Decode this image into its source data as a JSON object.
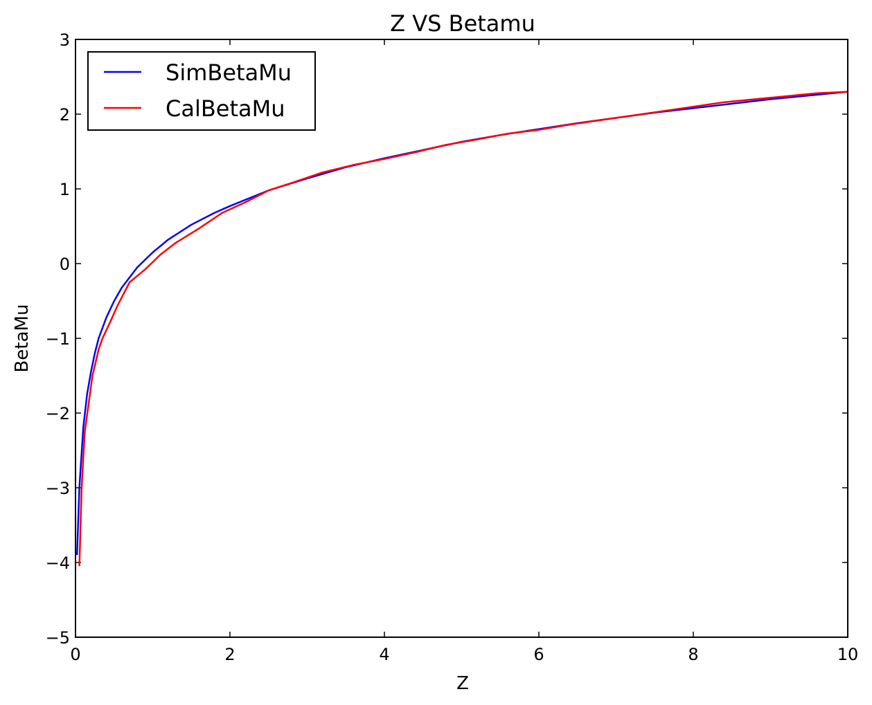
{
  "chart_data": {
    "type": "line",
    "title": "Z VS Betamu",
    "xlabel": "Z",
    "ylabel": "BetaMu",
    "xlim": [
      0,
      10
    ],
    "ylim": [
      -5,
      3
    ],
    "xticks": [
      0,
      2,
      4,
      6,
      8,
      10
    ],
    "yticks": [
      -5,
      -4,
      -3,
      -2,
      -1,
      0,
      1,
      2,
      3
    ],
    "xtick_labels": [
      "0",
      "2",
      "4",
      "6",
      "8",
      "10"
    ],
    "ytick_labels": [
      "−5",
      "−4",
      "−3",
      "−2",
      "−1",
      "0",
      "1",
      "2",
      "3"
    ],
    "grid": false,
    "legend_position": "top-left",
    "series": [
      {
        "name": "SimBetaMu",
        "color": "#0000ff",
        "x": [
          0.02,
          0.05,
          0.1,
          0.15,
          0.2,
          0.25,
          0.3,
          0.4,
          0.5,
          0.6,
          0.8,
          1.0,
          1.2,
          1.5,
          1.8,
          2.0,
          2.5,
          3.0,
          3.5,
          4.0,
          4.5,
          5.0,
          5.5,
          6.0,
          6.5,
          7.0,
          7.5,
          8.0,
          8.5,
          9.0,
          9.5,
          10.0
        ],
        "values": [
          -3.9,
          -3.0,
          -2.2,
          -1.75,
          -1.45,
          -1.2,
          -1.0,
          -0.72,
          -0.5,
          -0.32,
          -0.05,
          0.15,
          0.32,
          0.52,
          0.68,
          0.77,
          0.98,
          1.14,
          1.29,
          1.41,
          1.52,
          1.63,
          1.72,
          1.8,
          1.88,
          1.95,
          2.02,
          2.08,
          2.14,
          2.2,
          2.25,
          2.3
        ]
      },
      {
        "name": "CalBetaMu",
        "color": "#ff0000",
        "x": [
          0.05,
          0.08,
          0.12,
          0.18,
          0.22,
          0.3,
          0.35,
          0.45,
          0.55,
          0.7,
          0.9,
          1.1,
          1.3,
          1.6,
          1.9,
          2.2,
          2.5,
          2.8,
          3.2,
          3.6,
          4.0,
          4.4,
          4.8,
          5.2,
          5.6,
          6.0,
          6.4,
          6.8,
          7.2,
          7.6,
          8.0,
          8.4,
          8.8,
          9.2,
          9.6,
          10.0
        ],
        "values": [
          -4.05,
          -3.0,
          -2.25,
          -1.8,
          -1.5,
          -1.15,
          -1.0,
          -0.78,
          -0.55,
          -0.25,
          -0.08,
          0.12,
          0.28,
          0.47,
          0.68,
          0.82,
          0.98,
          1.08,
          1.22,
          1.32,
          1.4,
          1.49,
          1.59,
          1.66,
          1.74,
          1.79,
          1.86,
          1.92,
          1.98,
          2.04,
          2.1,
          2.16,
          2.2,
          2.24,
          2.28,
          2.3
        ]
      }
    ]
  }
}
